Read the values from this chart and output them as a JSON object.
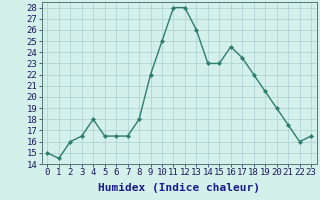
{
  "x": [
    0,
    1,
    2,
    3,
    4,
    5,
    6,
    7,
    8,
    9,
    10,
    11,
    12,
    13,
    14,
    15,
    16,
    17,
    18,
    19,
    20,
    21,
    22,
    23
  ],
  "y": [
    15,
    14.5,
    16,
    16.5,
    18,
    16.5,
    16.5,
    16.5,
    18,
    22,
    25,
    28,
    28,
    26,
    23,
    23,
    24.5,
    23.5,
    22,
    20.5,
    19,
    17.5,
    16,
    16.5
  ],
  "line_color": "#2e7d6e",
  "marker": "D",
  "marker_size": 2.0,
  "bg_color": "#d4f0ea",
  "grid_color": "#aacfcf",
  "xlabel": "Humidex (Indice chaleur)",
  "xlim": [
    -0.5,
    23.5
  ],
  "ylim": [
    14,
    28.5
  ],
  "yticks": [
    14,
    15,
    16,
    17,
    18,
    19,
    20,
    21,
    22,
    23,
    24,
    25,
    26,
    27,
    28
  ],
  "xticks": [
    0,
    1,
    2,
    3,
    4,
    5,
    6,
    7,
    8,
    9,
    10,
    11,
    12,
    13,
    14,
    15,
    16,
    17,
    18,
    19,
    20,
    21,
    22,
    23
  ],
  "xlabel_fontsize": 8,
  "tick_fontsize": 6.5,
  "line_width": 1.0,
  "xlabel_color": "#1a1a8c",
  "tick_color": "#1a1a5c"
}
